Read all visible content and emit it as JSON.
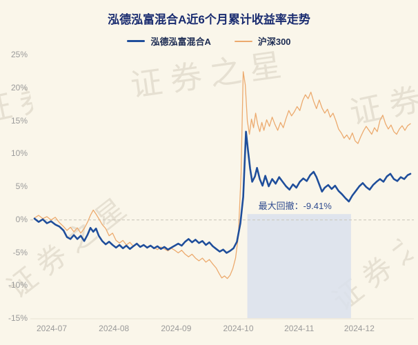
{
  "watermark": "证券之星",
  "colors": {
    "background": "#faf6ea",
    "title": "#1a2c70",
    "axis_label": "#9a9a9a",
    "annotation": "#2f4b8f",
    "zero_line": "#c8c4b8",
    "axis_line": "#e8e2d2",
    "watermark": "rgba(150,140,115,0.20)",
    "fund_line": "#1f4e9b",
    "benchmark_line": "#ecaa6e",
    "drawdown_region": "#d9e1ed"
  },
  "chart_data": {
    "type": "line",
    "title": "泓德泓富混合A近6个月累计收益率走势",
    "ylabel": "",
    "xlabel": "",
    "ylim": [
      -15,
      25
    ],
    "grid": false,
    "legend_position": "top",
    "y_ticks": [
      25,
      20,
      15,
      10,
      5,
      0,
      -5,
      -10,
      -15
    ],
    "y_tick_labels": [
      "25%",
      "20%",
      "15%",
      "10%",
      "5%",
      "0%",
      "-5%",
      "-10%",
      "-15%"
    ],
    "x_ticks": [
      {
        "label": "2024-07",
        "t": 75
      },
      {
        "label": "2024-08",
        "t": 165
      },
      {
        "label": "2024-09",
        "t": 255
      },
      {
        "label": "2024-10",
        "t": 345
      },
      {
        "label": "2024-11",
        "t": 433
      },
      {
        "label": "2024-12",
        "t": 520
      }
    ],
    "zero_line_dashed": true,
    "annotation": {
      "text": "最大回撤：-9.41%",
      "t": 374,
      "v": 2.3
    },
    "drawdown_region": {
      "t_start": 358,
      "t_end": 508,
      "v_top": 0.9,
      "v_bottom": -14.9,
      "color": "#d9e1ed"
    },
    "series": [
      {
        "name": "泓德泓富混合A",
        "color": "#1f4e9b",
        "stroke_width": 2.6,
        "points": [
          [
            50,
            0.2
          ],
          [
            56,
            -0.3
          ],
          [
            62,
            0.1
          ],
          [
            68,
            -0.5
          ],
          [
            74,
            -0.2
          ],
          [
            80,
            -0.7
          ],
          [
            86,
            -1.0
          ],
          [
            92,
            -1.6
          ],
          [
            97,
            -2.6
          ],
          [
            102,
            -2.9
          ],
          [
            107,
            -2.3
          ],
          [
            112,
            -2.9
          ],
          [
            117,
            -2.4
          ],
          [
            122,
            -3.2
          ],
          [
            127,
            -2.2
          ],
          [
            131,
            -1.2
          ],
          [
            135,
            -1.8
          ],
          [
            139,
            -1.3
          ],
          [
            143,
            -2.4
          ],
          [
            148,
            -3.2
          ],
          [
            153,
            -3.7
          ],
          [
            158,
            -3.3
          ],
          [
            163,
            -3.8
          ],
          [
            168,
            -4.2
          ],
          [
            173,
            -3.8
          ],
          [
            178,
            -4.3
          ],
          [
            183,
            -3.9
          ],
          [
            188,
            -4.4
          ],
          [
            193,
            -4.0
          ],
          [
            198,
            -3.6
          ],
          [
            203,
            -4.1
          ],
          [
            208,
            -3.8
          ],
          [
            213,
            -4.2
          ],
          [
            218,
            -3.9
          ],
          [
            223,
            -4.3
          ],
          [
            228,
            -4.0
          ],
          [
            233,
            -4.4
          ],
          [
            238,
            -4.1
          ],
          [
            243,
            -4.5
          ],
          [
            248,
            -4.2
          ],
          [
            253,
            -3.9
          ],
          [
            258,
            -3.6
          ],
          [
            263,
            -3.9
          ],
          [
            268,
            -3.3
          ],
          [
            273,
            -2.9
          ],
          [
            278,
            -3.4
          ],
          [
            283,
            -3.0
          ],
          [
            288,
            -3.5
          ],
          [
            293,
            -3.2
          ],
          [
            298,
            -3.8
          ],
          [
            303,
            -3.4
          ],
          [
            308,
            -4.0
          ],
          [
            313,
            -4.4
          ],
          [
            318,
            -4.8
          ],
          [
            323,
            -4.5
          ],
          [
            328,
            -5.0
          ],
          [
            333,
            -4.7
          ],
          [
            338,
            -4.3
          ],
          [
            343,
            -3.3
          ],
          [
            348,
            -0.5
          ],
          [
            352,
            3.5
          ],
          [
            356,
            13.4
          ],
          [
            359,
            10.5
          ],
          [
            362,
            7.8
          ],
          [
            365,
            5.8
          ],
          [
            369,
            6.6
          ],
          [
            372,
            7.9
          ],
          [
            376,
            6.2
          ],
          [
            380,
            5.2
          ],
          [
            384,
            6.7
          ],
          [
            389,
            5.1
          ],
          [
            394,
            6.2
          ],
          [
            399,
            5.5
          ],
          [
            404,
            6.5
          ],
          [
            409,
            5.8
          ],
          [
            414,
            5.1
          ],
          [
            419,
            4.6
          ],
          [
            424,
            5.4
          ],
          [
            429,
            4.9
          ],
          [
            434,
            5.8
          ],
          [
            439,
            6.3
          ],
          [
            444,
            5.9
          ],
          [
            449,
            6.8
          ],
          [
            454,
            7.3
          ],
          [
            458,
            6.5
          ],
          [
            462,
            5.4
          ],
          [
            466,
            4.3
          ],
          [
            470,
            4.9
          ],
          [
            475,
            5.3
          ],
          [
            480,
            4.7
          ],
          [
            485,
            5.2
          ],
          [
            490,
            4.4
          ],
          [
            495,
            3.9
          ],
          [
            500,
            3.3
          ],
          [
            505,
            2.8
          ],
          [
            510,
            3.7
          ],
          [
            515,
            4.4
          ],
          [
            520,
            5.1
          ],
          [
            525,
            5.6
          ],
          [
            530,
            5.0
          ],
          [
            535,
            4.6
          ],
          [
            540,
            5.3
          ],
          [
            545,
            5.8
          ],
          [
            550,
            6.2
          ],
          [
            555,
            5.8
          ],
          [
            560,
            6.6
          ],
          [
            565,
            7.0
          ],
          [
            570,
            6.2
          ],
          [
            575,
            5.9
          ],
          [
            580,
            6.5
          ],
          [
            585,
            6.2
          ],
          [
            590,
            6.8
          ],
          [
            594,
            7.0
          ]
        ]
      },
      {
        "name": "沪深300",
        "color": "#ecaa6e",
        "stroke_width": 1.3,
        "points": [
          [
            50,
            0.3
          ],
          [
            56,
            0.7
          ],
          [
            62,
            0.2
          ],
          [
            68,
            0.5
          ],
          [
            74,
            0.0
          ],
          [
            80,
            0.4
          ],
          [
            86,
            -0.4
          ],
          [
            92,
            -1.0
          ],
          [
            97,
            -1.6
          ],
          [
            102,
            -1.1
          ],
          [
            107,
            -1.8
          ],
          [
            112,
            -1.2
          ],
          [
            117,
            -2.0
          ],
          [
            122,
            -1.3
          ],
          [
            127,
            -0.3
          ],
          [
            131,
            0.7
          ],
          [
            135,
            1.5
          ],
          [
            139,
            0.9
          ],
          [
            143,
            0.2
          ],
          [
            148,
            -0.7
          ],
          [
            153,
            -1.3
          ],
          [
            158,
            -2.4
          ],
          [
            163,
            -2.0
          ],
          [
            168,
            -3.1
          ],
          [
            173,
            -3.5
          ],
          [
            178,
            -3.1
          ],
          [
            183,
            -3.8
          ],
          [
            188,
            -3.4
          ],
          [
            193,
            -4.0
          ],
          [
            198,
            -3.7
          ],
          [
            203,
            -4.1
          ],
          [
            208,
            -3.8
          ],
          [
            213,
            -4.3
          ],
          [
            218,
            -3.9
          ],
          [
            223,
            -4.2
          ],
          [
            228,
            -4.5
          ],
          [
            233,
            -4.1
          ],
          [
            238,
            -4.4
          ],
          [
            243,
            -4.7
          ],
          [
            248,
            -4.3
          ],
          [
            253,
            -4.6
          ],
          [
            258,
            -5.0
          ],
          [
            263,
            -4.6
          ],
          [
            268,
            -5.2
          ],
          [
            273,
            -5.6
          ],
          [
            278,
            -5.2
          ],
          [
            283,
            -5.8
          ],
          [
            288,
            -6.2
          ],
          [
            293,
            -5.8
          ],
          [
            298,
            -6.4
          ],
          [
            303,
            -6.0
          ],
          [
            308,
            -6.7
          ],
          [
            313,
            -7.3
          ],
          [
            317,
            -8.1
          ],
          [
            321,
            -8.8
          ],
          [
            325,
            -8.5
          ],
          [
            329,
            -8.9
          ],
          [
            333,
            -8.4
          ],
          [
            337,
            -7.4
          ],
          [
            341,
            -5.8
          ],
          [
            345,
            -2.5
          ],
          [
            349,
            7.0
          ],
          [
            352,
            22.5
          ],
          [
            355,
            20.5
          ],
          [
            358,
            15.0
          ],
          [
            361,
            13.0
          ],
          [
            364,
            15.3
          ],
          [
            367,
            14.0
          ],
          [
            370,
            16.2
          ],
          [
            373,
            14.5
          ],
          [
            376,
            13.4
          ],
          [
            379,
            14.8
          ],
          [
            382,
            13.6
          ],
          [
            386,
            15.2
          ],
          [
            390,
            14.2
          ],
          [
            394,
            15.6
          ],
          [
            398,
            14.5
          ],
          [
            402,
            13.6
          ],
          [
            406,
            14.8
          ],
          [
            410,
            14.0
          ],
          [
            414,
            15.4
          ],
          [
            418,
            16.6
          ],
          [
            422,
            15.8
          ],
          [
            426,
            16.4
          ],
          [
            430,
            17.2
          ],
          [
            434,
            16.6
          ],
          [
            438,
            18.1
          ],
          [
            442,
            19.0
          ],
          [
            446,
            18.4
          ],
          [
            450,
            19.4
          ],
          [
            454,
            18.0
          ],
          [
            458,
            16.9
          ],
          [
            462,
            18.2
          ],
          [
            466,
            17.0
          ],
          [
            470,
            16.2
          ],
          [
            474,
            16.8
          ],
          [
            478,
            15.6
          ],
          [
            482,
            16.2
          ],
          [
            486,
            15.1
          ],
          [
            490,
            13.8
          ],
          [
            494,
            13.2
          ],
          [
            498,
            12.4
          ],
          [
            502,
            12.9
          ],
          [
            506,
            12.2
          ],
          [
            510,
            13.2
          ],
          [
            514,
            12.0
          ],
          [
            518,
            11.6
          ],
          [
            522,
            12.6
          ],
          [
            526,
            13.5
          ],
          [
            530,
            14.2
          ],
          [
            534,
            13.6
          ],
          [
            538,
            13.0
          ],
          [
            542,
            14.0
          ],
          [
            546,
            13.4
          ],
          [
            550,
            15.1
          ],
          [
            554,
            15.9
          ],
          [
            558,
            14.6
          ],
          [
            562,
            13.8
          ],
          [
            566,
            14.4
          ],
          [
            570,
            13.4
          ],
          [
            574,
            13.0
          ],
          [
            578,
            13.8
          ],
          [
            582,
            14.3
          ],
          [
            586,
            13.6
          ],
          [
            590,
            14.3
          ],
          [
            594,
            14.6
          ]
        ]
      }
    ]
  }
}
